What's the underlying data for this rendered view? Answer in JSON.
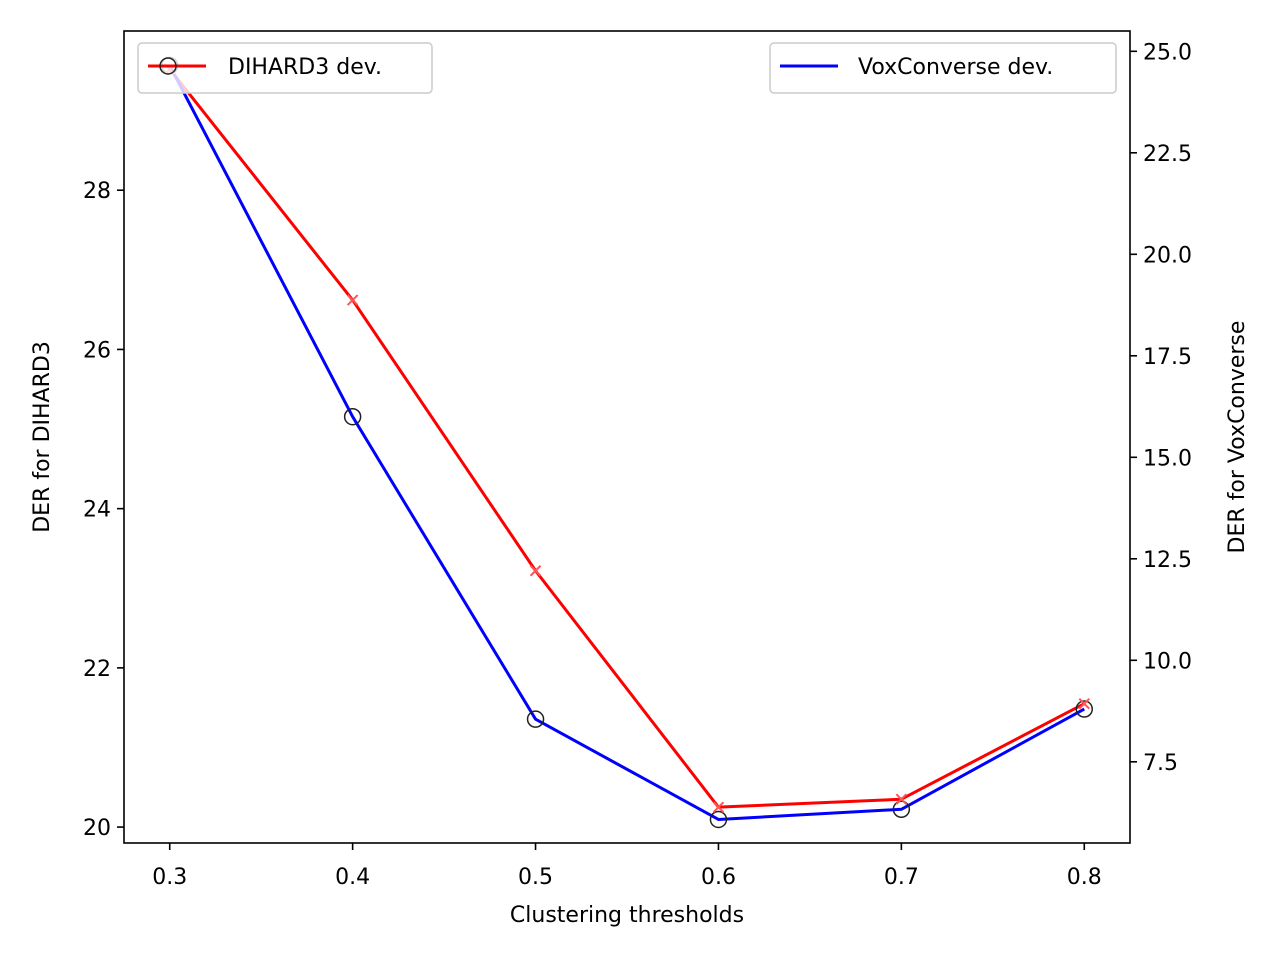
{
  "chart_data": {
    "type": "line",
    "xlabel": "Clustering thresholds",
    "x": [
      0.3,
      0.4,
      0.5,
      0.6,
      0.7,
      0.8
    ],
    "xticks": [
      "0.3",
      "0.4",
      "0.5",
      "0.6",
      "0.7",
      "0.8"
    ],
    "xlim": [
      0.275,
      0.825
    ],
    "left_axis": {
      "label": "DER for DIHARD3",
      "ylim": [
        19.8,
        30.0
      ],
      "ticks": [
        20,
        22,
        24,
        26,
        28
      ],
      "tick_labels": [
        "20",
        "22",
        "24",
        "26",
        "28"
      ]
    },
    "right_axis": {
      "label": "DER for VoxConverse",
      "ylim": [
        5.5,
        25.5
      ],
      "ticks": [
        7.5,
        10.0,
        12.5,
        15.0,
        17.5,
        20.0,
        22.5,
        25.0
      ],
      "tick_labels": [
        "7.5",
        "10.0",
        "12.5",
        "15.0",
        "17.5",
        "20.0",
        "22.5",
        "25.0"
      ]
    },
    "series": [
      {
        "name": "DIHARD3 dev.",
        "axis": "left",
        "color": "#ff0000",
        "marker": "x",
        "values": [
          29.52,
          26.62,
          23.22,
          20.25,
          20.35,
          21.55
        ]
      },
      {
        "name": "VoxConverse dev.",
        "axis": "right",
        "color": "#0000ff",
        "marker": "circle",
        "values": [
          24.65,
          16.0,
          8.55,
          6.08,
          6.33,
          8.8
        ]
      }
    ],
    "legend_left": {
      "label": "DIHARD3 dev.",
      "placement": "upper left"
    },
    "legend_right": {
      "label": "VoxConverse dev.",
      "placement": "upper right"
    }
  }
}
